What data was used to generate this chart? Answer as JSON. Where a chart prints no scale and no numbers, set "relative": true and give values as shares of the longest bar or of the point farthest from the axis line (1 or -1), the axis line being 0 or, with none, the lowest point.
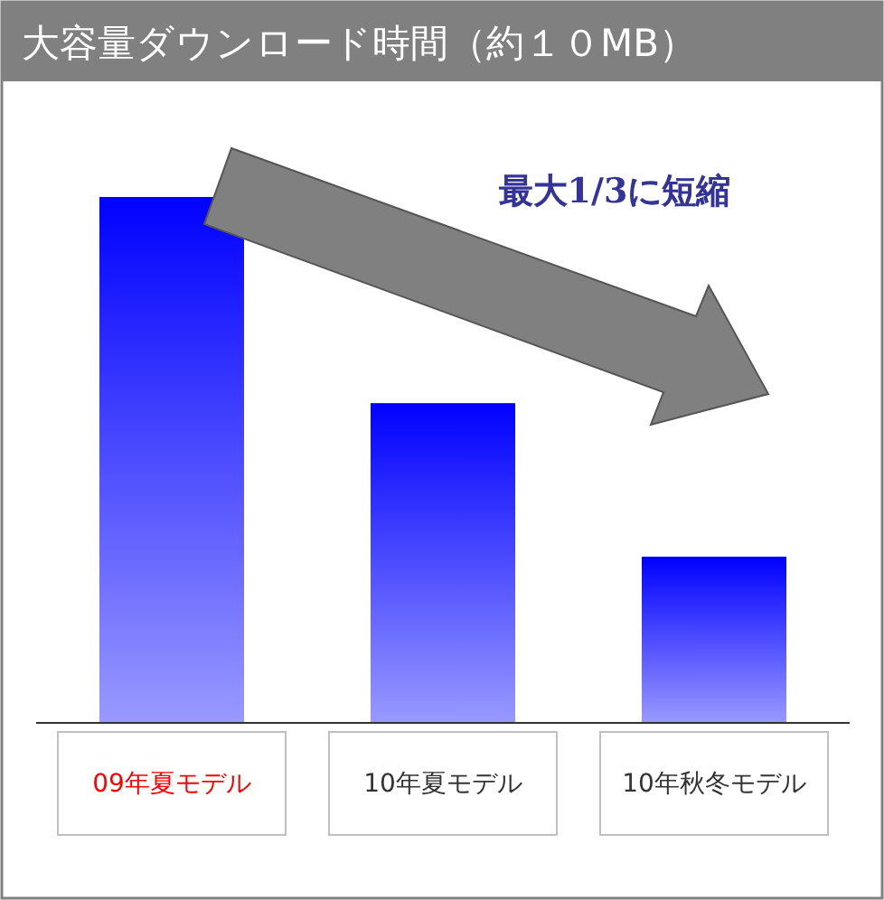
{
  "chart_data": {
    "type": "bar",
    "title": "大容量ダウンロード時間（約１０MB）",
    "relative": true,
    "categories": [
      "09年夏モデル",
      "10年夏モデル",
      "10年秋冬モデル"
    ],
    "values": [
      1,
      0.608,
      0.316
    ],
    "color": "#0000ff",
    "annotations": [
      "最大1/3に短縮"
    ]
  }
}
